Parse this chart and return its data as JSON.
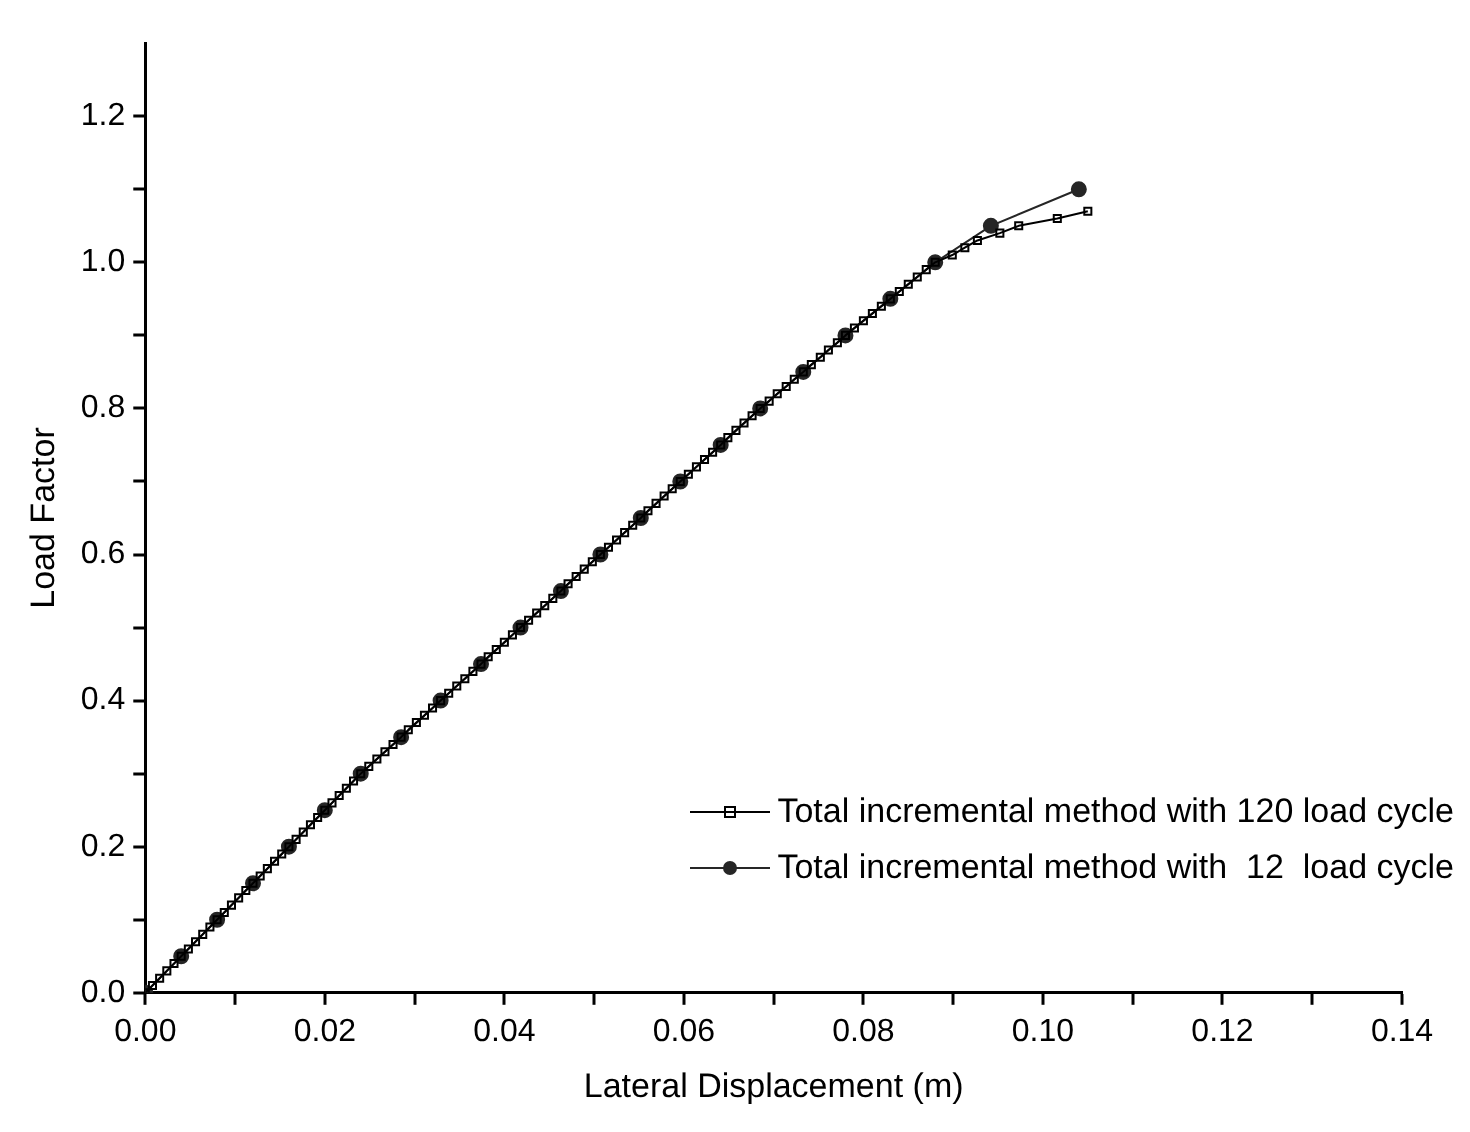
{
  "chart_data": {
    "type": "line",
    "xlabel": "Lateral Displacement (m)",
    "ylabel": "Load Factor",
    "xlim": [
      0,
      0.14
    ],
    "xticks": [
      {
        "value": 0,
        "label": "0.00"
      },
      {
        "value": 0.01,
        "label": null
      },
      {
        "value": 0.02,
        "label": "0.02"
      },
      {
        "value": 0.03,
        "label": null
      },
      {
        "value": 0.04,
        "label": "0.04"
      },
      {
        "value": 0.05,
        "label": null
      },
      {
        "value": 0.06,
        "label": "0.06"
      },
      {
        "value": 0.07,
        "label": null
      },
      {
        "value": 0.08,
        "label": "0.08"
      },
      {
        "value": 0.09,
        "label": null
      },
      {
        "value": 0.1,
        "label": "0.10"
      },
      {
        "value": 0.11,
        "label": null
      },
      {
        "value": 0.12,
        "label": "0.12"
      },
      {
        "value": 0.13,
        "label": null
      },
      {
        "value": 0.14,
        "label": "0.14"
      }
    ],
    "ylim": [
      0,
      1.3
    ],
    "yticks": [
      {
        "value": 0,
        "label": "0.0"
      },
      {
        "value": 0.1,
        "label": null
      },
      {
        "value": 0.2,
        "label": "0.2"
      },
      {
        "value": 0.3,
        "label": null
      },
      {
        "value": 0.4,
        "label": "0.4"
      },
      {
        "value": 0.5,
        "label": null
      },
      {
        "value": 0.6,
        "label": "0.6"
      },
      {
        "value": 0.7,
        "label": null
      },
      {
        "value": 0.8,
        "label": "0.8"
      },
      {
        "value": 0.9,
        "label": null
      },
      {
        "value": 1.0,
        "label": "1.0"
      },
      {
        "value": 1.1,
        "label": null
      },
      {
        "value": 1.2,
        "label": "1.2"
      }
    ],
    "grid": false,
    "legend": "bottom right",
    "line_style": "solid",
    "series": [
      {
        "name": "Total incremental method with 120 load cycle",
        "color": "#000000",
        "marker": "square",
        "x": [
          0,
          0.0008,
          0.0016,
          0.0024,
          0.0032,
          0.004,
          0.0048,
          0.0056,
          0.0064,
          0.0072,
          0.008,
          0.0088,
          0.0096,
          0.0104,
          0.0112,
          0.012,
          0.0128,
          0.0136,
          0.0144,
          0.0152,
          0.016,
          0.0168,
          0.0176,
          0.0184,
          0.0192,
          0.02,
          0.0208,
          0.0216,
          0.0224,
          0.0232,
          0.024,
          0.0249,
          0.0258,
          0.0267,
          0.0276,
          0.0285,
          0.0293,
          0.0302,
          0.0311,
          0.032,
          0.0329,
          0.0338,
          0.0347,
          0.0356,
          0.0365,
          0.0374,
          0.0382,
          0.0391,
          0.04,
          0.0409,
          0.0418,
          0.0427,
          0.0436,
          0.0445,
          0.0454,
          0.0463,
          0.0471,
          0.048,
          0.0489,
          0.0498,
          0.0507,
          0.0516,
          0.0525,
          0.0534,
          0.0543,
          0.0552,
          0.056,
          0.0569,
          0.0578,
          0.0587,
          0.0596,
          0.0605,
          0.0614,
          0.0623,
          0.0632,
          0.0641,
          0.0649,
          0.0658,
          0.0667,
          0.0676,
          0.0685,
          0.0695,
          0.0704,
          0.0714,
          0.0723,
          0.0733,
          0.0742,
          0.0752,
          0.0761,
          0.0771,
          0.078,
          0.079,
          0.08,
          0.081,
          0.082,
          0.083,
          0.084,
          0.085,
          0.086,
          0.087,
          0.088,
          0.0899,
          0.0913,
          0.0927,
          0.0952,
          0.0973,
          0.1016,
          0.105
        ],
        "values": [
          0,
          0.01,
          0.02,
          0.03,
          0.04,
          0.05,
          0.06,
          0.07,
          0.08,
          0.09,
          0.1,
          0.11,
          0.12,
          0.13,
          0.14,
          0.15,
          0.16,
          0.17,
          0.18,
          0.19,
          0.2,
          0.21,
          0.22,
          0.23,
          0.24,
          0.25,
          0.26,
          0.27,
          0.28,
          0.29,
          0.3,
          0.31,
          0.32,
          0.33,
          0.34,
          0.35,
          0.36,
          0.37,
          0.38,
          0.39,
          0.4,
          0.41,
          0.42,
          0.43,
          0.44,
          0.45,
          0.46,
          0.47,
          0.48,
          0.49,
          0.5,
          0.51,
          0.52,
          0.53,
          0.54,
          0.55,
          0.56,
          0.57,
          0.58,
          0.59,
          0.6,
          0.61,
          0.62,
          0.63,
          0.64,
          0.65,
          0.66,
          0.67,
          0.68,
          0.69,
          0.7,
          0.71,
          0.72,
          0.73,
          0.74,
          0.75,
          0.76,
          0.77,
          0.78,
          0.79,
          0.8,
          0.81,
          0.82,
          0.83,
          0.84,
          0.85,
          0.86,
          0.87,
          0.88,
          0.89,
          0.9,
          0.91,
          0.92,
          0.93,
          0.94,
          0.95,
          0.96,
          0.97,
          0.98,
          0.99,
          1.0,
          1.01,
          1.02,
          1.03,
          1.04,
          1.05,
          1.06,
          1.07
        ]
      },
      {
        "name": "Total incremental method with  12  load cycle",
        "color": "#262626",
        "marker": "circle",
        "x": [
          0,
          0.004,
          0.008,
          0.012,
          0.016,
          0.02,
          0.024,
          0.0285,
          0.0329,
          0.0374,
          0.0418,
          0.0463,
          0.0507,
          0.0552,
          0.0596,
          0.0641,
          0.0685,
          0.0733,
          0.078,
          0.083,
          0.088,
          0.0942,
          0.104
        ],
        "values": [
          0,
          0.05,
          0.1,
          0.15,
          0.2,
          0.25,
          0.3,
          0.35,
          0.4,
          0.45,
          0.5,
          0.55,
          0.6,
          0.65,
          0.7,
          0.75,
          0.8,
          0.85,
          0.9,
          0.95,
          1.0,
          1.05,
          1.1
        ]
      }
    ]
  }
}
